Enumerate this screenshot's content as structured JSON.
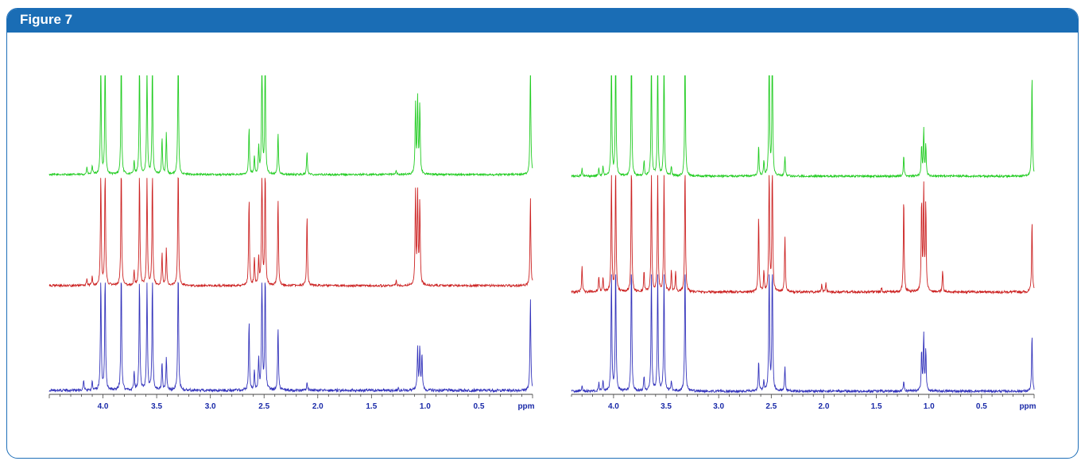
{
  "figure": {
    "title": "Figure 7"
  },
  "chart_data": [
    {
      "type": "line",
      "x_axis": {
        "label": "ppm",
        "reversed": true,
        "xlim": [
          4.5,
          0.0
        ],
        "ticks": [
          4.0,
          3.5,
          3.0,
          2.5,
          2.0,
          1.5,
          1.0,
          0.5
        ],
        "tick_labels": [
          "4.0",
          "3.5",
          "3.0",
          "2.5",
          "2.0",
          "1.5",
          "1.0",
          "0.5"
        ]
      },
      "series": [
        {
          "color": "#22cc22",
          "baseline_noise": 0.01,
          "peaks": [
            [
              4.15,
              0.08
            ],
            [
              4.1,
              0.1
            ],
            [
              4.02,
              1.2
            ],
            [
              3.98,
              1.3
            ],
            [
              3.83,
              1.3
            ],
            [
              3.71,
              0.15
            ],
            [
              3.66,
              1.2
            ],
            [
              3.59,
              1.2
            ],
            [
              3.54,
              1.2
            ],
            [
              3.45,
              0.4
            ],
            [
              3.41,
              0.45
            ],
            [
              3.3,
              1.4
            ],
            [
              2.64,
              0.5
            ],
            [
              2.59,
              0.2
            ],
            [
              2.55,
              0.3
            ],
            [
              2.52,
              1.3
            ],
            [
              2.49,
              1.3
            ],
            [
              2.37,
              0.45
            ],
            [
              2.1,
              0.25
            ],
            [
              1.27,
              0.05
            ],
            [
              1.09,
              0.75
            ],
            [
              1.07,
              0.8
            ],
            [
              1.05,
              0.75
            ],
            [
              0.02,
              1.2
            ]
          ]
        },
        {
          "color": "#cc2222",
          "baseline_noise": 0.012,
          "peaks": [
            [
              4.15,
              0.08
            ],
            [
              4.1,
              0.1
            ],
            [
              4.02,
              1.2
            ],
            [
              3.98,
              1.3
            ],
            [
              3.83,
              1.3
            ],
            [
              3.71,
              0.15
            ],
            [
              3.66,
              1.2
            ],
            [
              3.59,
              1.2
            ],
            [
              3.54,
              1.2
            ],
            [
              3.45,
              0.35
            ],
            [
              3.41,
              0.4
            ],
            [
              3.3,
              1.4
            ],
            [
              2.64,
              0.95
            ],
            [
              2.59,
              0.3
            ],
            [
              2.55,
              0.3
            ],
            [
              2.52,
              1.3
            ],
            [
              2.49,
              1.3
            ],
            [
              2.37,
              0.95
            ],
            [
              2.1,
              0.75
            ],
            [
              1.27,
              0.05
            ],
            [
              1.09,
              1.0
            ],
            [
              1.07,
              0.95
            ],
            [
              1.05,
              0.9
            ],
            [
              0.02,
              0.95
            ]
          ]
        },
        {
          "color": "#3333bb",
          "baseline_noise": 0.015,
          "peaks": [
            [
              4.18,
              0.1
            ],
            [
              4.1,
              0.1
            ],
            [
              4.02,
              1.2
            ],
            [
              3.98,
              1.3
            ],
            [
              3.83,
              1.3
            ],
            [
              3.71,
              0.2
            ],
            [
              3.66,
              1.2
            ],
            [
              3.59,
              1.2
            ],
            [
              3.54,
              1.2
            ],
            [
              3.45,
              0.3
            ],
            [
              3.41,
              0.35
            ],
            [
              3.3,
              1.4
            ],
            [
              2.64,
              0.75
            ],
            [
              2.59,
              0.2
            ],
            [
              2.55,
              0.35
            ],
            [
              2.52,
              1.3
            ],
            [
              2.49,
              1.3
            ],
            [
              2.37,
              0.7
            ],
            [
              2.1,
              0.08
            ],
            [
              1.25,
              0.03
            ],
            [
              1.07,
              0.45
            ],
            [
              1.05,
              0.45
            ],
            [
              1.03,
              0.4
            ],
            [
              0.02,
              1.0
            ]
          ]
        }
      ]
    },
    {
      "type": "line",
      "x_axis": {
        "label": "ppm",
        "reversed": true,
        "xlim": [
          4.4,
          0.0
        ],
        "ticks": [
          4.0,
          3.5,
          3.0,
          2.5,
          2.0,
          1.5,
          1.0,
          0.5
        ],
        "tick_labels": [
          "4.0",
          "3.5",
          "3.0",
          "2.5",
          "2.0",
          "1.5",
          "1.0",
          "0.5"
        ]
      },
      "series": [
        {
          "color": "#22cc22",
          "baseline_noise": 0.01,
          "peaks": [
            [
              4.3,
              0.08
            ],
            [
              4.14,
              0.08
            ],
            [
              4.1,
              0.1
            ],
            [
              4.02,
              1.2
            ],
            [
              3.98,
              1.3
            ],
            [
              3.83,
              1.3
            ],
            [
              3.71,
              0.15
            ],
            [
              3.64,
              1.2
            ],
            [
              3.58,
              1.2
            ],
            [
              3.52,
              1.2
            ],
            [
              3.45,
              0.1
            ],
            [
              3.32,
              1.3
            ],
            [
              2.62,
              0.3
            ],
            [
              2.57,
              0.15
            ],
            [
              2.52,
              1.3
            ],
            [
              2.49,
              1.3
            ],
            [
              2.37,
              0.2
            ],
            [
              1.24,
              0.2
            ],
            [
              1.07,
              0.3
            ],
            [
              1.05,
              0.45
            ],
            [
              1.03,
              0.3
            ],
            [
              0.02,
              1.0
            ]
          ]
        },
        {
          "color": "#cc2222",
          "baseline_noise": 0.012,
          "peaks": [
            [
              4.3,
              0.25
            ],
            [
              4.14,
              0.15
            ],
            [
              4.1,
              0.15
            ],
            [
              4.02,
              1.2
            ],
            [
              3.98,
              1.3
            ],
            [
              3.83,
              1.3
            ],
            [
              3.71,
              0.2
            ],
            [
              3.64,
              1.2
            ],
            [
              3.58,
              1.2
            ],
            [
              3.52,
              1.2
            ],
            [
              3.45,
              0.2
            ],
            [
              3.41,
              0.2
            ],
            [
              3.32,
              1.3
            ],
            [
              2.62,
              0.75
            ],
            [
              2.57,
              0.2
            ],
            [
              2.52,
              1.3
            ],
            [
              2.49,
              1.3
            ],
            [
              2.37,
              0.55
            ],
            [
              2.02,
              0.08
            ],
            [
              1.98,
              0.1
            ],
            [
              1.45,
              0.05
            ],
            [
              1.24,
              0.95
            ],
            [
              1.07,
              0.9
            ],
            [
              1.05,
              1.0
            ],
            [
              1.03,
              0.85
            ],
            [
              0.87,
              0.2
            ],
            [
              0.02,
              0.7
            ]
          ]
        },
        {
          "color": "#3333bb",
          "baseline_noise": 0.012,
          "peaks": [
            [
              4.3,
              0.06
            ],
            [
              4.14,
              0.08
            ],
            [
              4.1,
              0.1
            ],
            [
              4.02,
              1.2
            ],
            [
              3.98,
              1.3
            ],
            [
              3.83,
              1.3
            ],
            [
              3.71,
              0.15
            ],
            [
              3.64,
              1.2
            ],
            [
              3.58,
              1.2
            ],
            [
              3.52,
              1.2
            ],
            [
              3.45,
              0.1
            ],
            [
              3.32,
              1.3
            ],
            [
              2.62,
              0.3
            ],
            [
              2.57,
              0.1
            ],
            [
              2.52,
              1.3
            ],
            [
              2.49,
              1.3
            ],
            [
              2.37,
              0.25
            ],
            [
              1.24,
              0.1
            ],
            [
              1.07,
              0.4
            ],
            [
              1.05,
              0.55
            ],
            [
              1.03,
              0.4
            ],
            [
              0.02,
              0.55
            ]
          ]
        }
      ]
    }
  ]
}
